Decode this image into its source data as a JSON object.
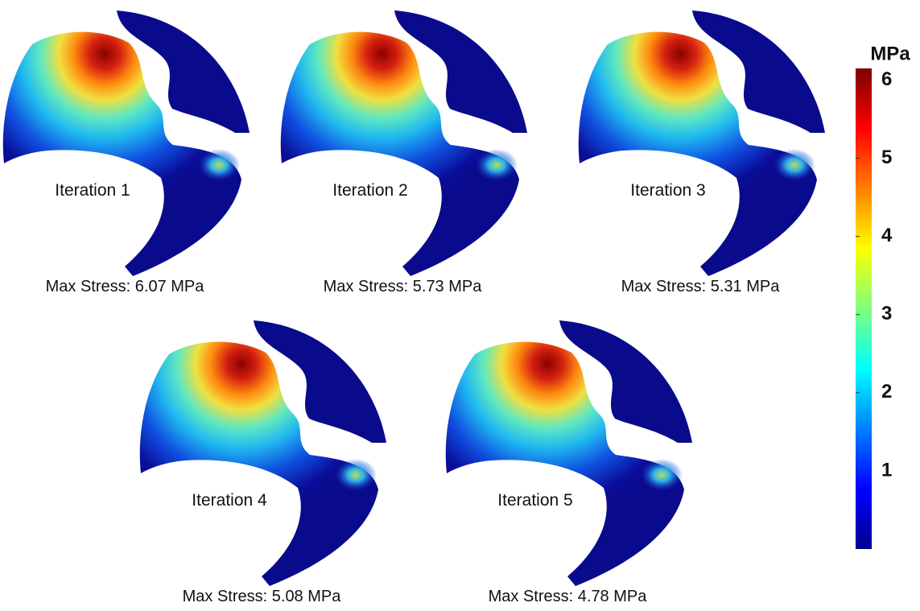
{
  "panels": [
    {
      "label": "Iteration 1",
      "caption": "Max Stress: 6.07 MPa"
    },
    {
      "label": "Iteration 2",
      "caption": "Max Stress: 5.73 MPa"
    },
    {
      "label": "Iteration 3",
      "caption": "Max Stress: 5.31 MPa"
    },
    {
      "label": "Iteration 4",
      "caption": "Max Stress: 5.08 MPa"
    },
    {
      "label": "Iteration 5",
      "caption": "Max Stress: 4.78 MPa"
    }
  ],
  "colorbar": {
    "unit": "MPa",
    "lim": [
      0,
      6.15
    ],
    "ticks": [
      1,
      2,
      3,
      4,
      5,
      6
    ]
  }
}
